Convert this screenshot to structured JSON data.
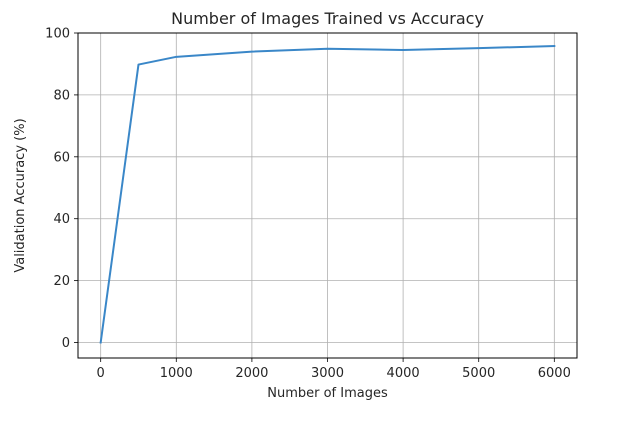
{
  "chart_data": {
    "type": "line",
    "title": "Number of Images Trained vs Accuracy",
    "xlabel": "Number of Images",
    "ylabel": "Validation Accuracy (%)",
    "xlim": [
      -300,
      6300
    ],
    "ylim": [
      -5,
      100
    ],
    "xticks": [
      0,
      1000,
      2000,
      3000,
      4000,
      5000,
      6000
    ],
    "yticks": [
      0,
      20,
      40,
      60,
      80,
      100
    ],
    "grid": true,
    "series": [
      {
        "x": [
          0,
          500,
          1000,
          2000,
          3000,
          4000,
          5000,
          6000
        ],
        "y": [
          0,
          89.8,
          92.3,
          94.0,
          94.9,
          94.5,
          95.1,
          95.8
        ],
        "color": "#3a87c8"
      }
    ]
  }
}
